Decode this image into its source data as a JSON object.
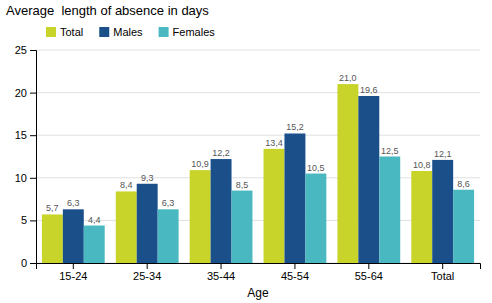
{
  "chart_data": {
    "type": "bar",
    "ylabel": "Average  length of absence in days",
    "xlabel": "Age",
    "categories": [
      "15-24",
      "25-34",
      "35-44",
      "45-54",
      "55-64",
      "Total"
    ],
    "series": [
      {
        "name": "Total",
        "color": "#c8d42a",
        "values": [
          5.7,
          8.4,
          10.9,
          13.4,
          21.0,
          10.8
        ],
        "value_labels": [
          "5,7",
          "8,4",
          "10,9",
          "13,4",
          "21,0",
          "10,8"
        ]
      },
      {
        "name": "Males",
        "color": "#1a4f8a",
        "values": [
          6.3,
          9.3,
          12.2,
          15.2,
          19.6,
          12.1
        ],
        "value_labels": [
          "6,3",
          "9,3",
          "12,2",
          "15,2",
          "19,6",
          "12,1"
        ]
      },
      {
        "name": "Females",
        "color": "#4ab8c0",
        "values": [
          4.4,
          6.3,
          8.5,
          10.5,
          12.5,
          8.6
        ],
        "value_labels": [
          "4,4",
          "6,3",
          "8,5",
          "10,5",
          "12,5",
          "8,6"
        ]
      }
    ],
    "ylim": [
      0,
      25
    ],
    "yticks": [
      0,
      5,
      10,
      15,
      20,
      25
    ],
    "grid": true,
    "legend": "upper left",
    "data_labels": true
  }
}
